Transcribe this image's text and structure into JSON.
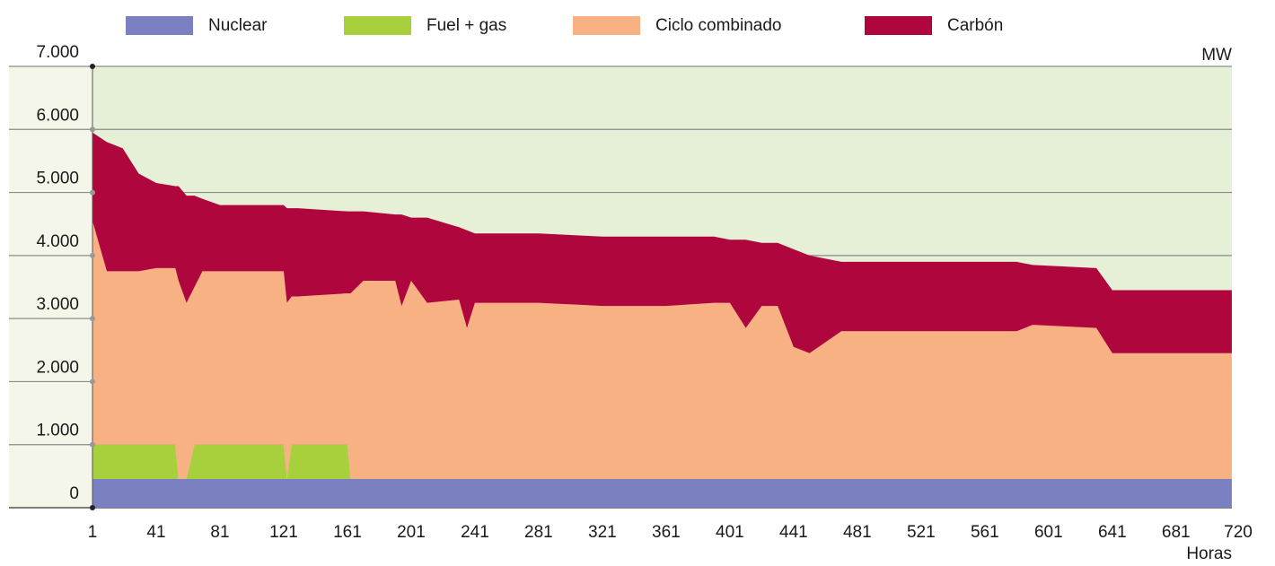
{
  "chart_data": {
    "type": "stacked_area",
    "y_axis_label": "MW",
    "x_axis_label": "Horas",
    "legend": "top",
    "grid": true,
    "xlim": [
      1,
      720
    ],
    "xticks": [
      1,
      41,
      81,
      121,
      161,
      201,
      241,
      281,
      321,
      361,
      401,
      441,
      481,
      521,
      561,
      601,
      641,
      681,
      720
    ],
    "ylim": [
      0,
      7000
    ],
    "yticks": [
      0,
      {
        "value": 1000,
        "label": "1.000"
      },
      {
        "value": 2000,
        "label": "2.000"
      },
      {
        "value": 3000,
        "label": "3.000"
      },
      {
        "value": 4000,
        "label": "4.000"
      },
      {
        "value": 5000,
        "label": "5.000"
      },
      {
        "value": 6000,
        "label": "6.000"
      },
      {
        "value": 7000,
        "label": "7.000"
      }
    ],
    "x": [
      1,
      10,
      20,
      30,
      41,
      53,
      55,
      60,
      65,
      70,
      81,
      121,
      123,
      126,
      130,
      161,
      163,
      171,
      191,
      195,
      201,
      211,
      231,
      236,
      241,
      281,
      321,
      361,
      391,
      401,
      411,
      421,
      431,
      441,
      451,
      471,
      481,
      581,
      591,
      631,
      641,
      681,
      716
    ],
    "series": [
      {
        "name": "Nuclear",
        "color": "#7b80c0",
        "values": [
          455,
          455,
          455,
          455,
          455,
          455,
          455,
          455,
          455,
          455,
          455,
          455,
          455,
          455,
          455,
          455,
          455,
          455,
          455,
          455,
          455,
          455,
          455,
          455,
          455,
          455,
          455,
          455,
          455,
          455,
          455,
          455,
          455,
          455,
          455,
          455,
          455,
          455,
          455,
          455,
          455,
          455,
          455
        ]
      },
      {
        "name": "Fuel + gas",
        "color": "#a8cf3c",
        "values": [
          545,
          545,
          545,
          545,
          545,
          545,
          0,
          0,
          545,
          545,
          545,
          545,
          0,
          545,
          545,
          545,
          0,
          0,
          0,
          0,
          0,
          0,
          0,
          0,
          0,
          0,
          0,
          0,
          0,
          0,
          0,
          0,
          0,
          0,
          0,
          0,
          0,
          0,
          0,
          0,
          0,
          0,
          0
        ]
      },
      {
        "name": "Ciclo combinado",
        "color": "#f8b183",
        "values": [
          3550,
          2750,
          2750,
          2750,
          2800,
          2800,
          3145,
          2795,
          2500,
          2750,
          2750,
          2750,
          2795,
          2350,
          2350,
          2400,
          2945,
          3145,
          3145,
          2745,
          3145,
          2795,
          2845,
          2395,
          2795,
          2795,
          2745,
          2745,
          2795,
          2795,
          2395,
          2745,
          2745,
          2095,
          1995,
          2345,
          2345,
          2345,
          2445,
          2395,
          1995,
          1995,
          1995
        ]
      },
      {
        "name": "Carbón",
        "color": "#b0063e",
        "values": [
          1400,
          2050,
          1950,
          1550,
          1350,
          1300,
          1500,
          1700,
          1450,
          1150,
          1050,
          1050,
          1500,
          1400,
          1400,
          1300,
          1300,
          1100,
          1050,
          1450,
          1000,
          1350,
          1150,
          1550,
          1100,
          1100,
          1100,
          1100,
          1050,
          1000,
          1400,
          1000,
          1000,
          1550,
          1550,
          1100,
          1100,
          1100,
          950,
          950,
          1000,
          1000,
          1000
        ]
      }
    ]
  }
}
